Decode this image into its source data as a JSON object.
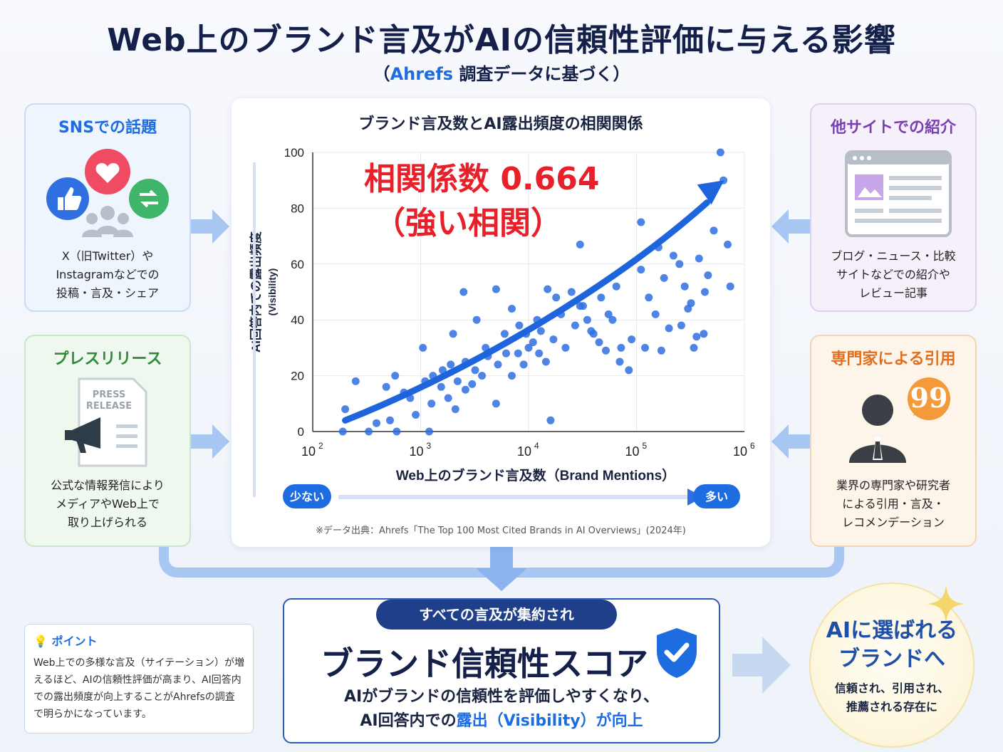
{
  "header": {
    "title": "Web上のブランド言及がAIの信頼性評価に与える影響",
    "subtitle_open": "（",
    "subtitle_brand": "Ahrefs",
    "subtitle_rest": " 調査データに基づく）"
  },
  "cards": {
    "sns": {
      "title": "SNSでの話題",
      "desc": "X（旧Twitter）や\nInstagramなどでの\n投稿・言及・シェア"
    },
    "press": {
      "title": "プレスリリース",
      "desc": "公式な情報発信により\nメディアやWeb上で\n取り上げられる",
      "doc_text": "PRESS\nRELEASE"
    },
    "other": {
      "title": "他サイトでの紹介",
      "desc": "ブログ・ニュース・比較\nサイトなどでの紹介や\nレビュー記事"
    },
    "expert": {
      "title": "専門家による引用",
      "desc": "業界の専門家や研究者\nによる引用・言及・\nレコメンデーション"
    }
  },
  "chart_panel": {
    "title": "ブランド言及数とAI露出頻度の相関関係",
    "source": "※データ出典：Ahrefs「The Top 100 Most Cited Brands in AI Overviews」(2024年)",
    "low_label": "少ない",
    "high_label": "多い"
  },
  "chart_data": {
    "type": "scatter",
    "xlabel": "Web上のブランド言及数（Brand Mentions）",
    "ylabel": "AI回答内での露出頻度",
    "ylabel_sub": "(Visibility)",
    "x_scale": "log",
    "xlim": [
      100,
      1000000
    ],
    "ylim": [
      0,
      100
    ],
    "x_ticks": [
      100,
      1000,
      10000,
      100000,
      1000000
    ],
    "x_tick_labels": [
      [
        "10",
        "2"
      ],
      [
        "10",
        "3"
      ],
      [
        "10",
        "4"
      ],
      [
        "10",
        "5"
      ],
      [
        "10",
        "6"
      ]
    ],
    "y_ticks": [
      0,
      20,
      40,
      60,
      80,
      100
    ],
    "grid": true,
    "annotation_line1": "相関係数 0.664",
    "annotation_line2": "（強い相関）",
    "trend_color": "#1e64dc",
    "point_color": "#2f6fe0",
    "series": [
      {
        "points": [
          [
            190,
            0
          ],
          [
            200,
            8
          ],
          [
            330,
            0
          ],
          [
            390,
            3
          ],
          [
            520,
            4
          ],
          [
            600,
            0
          ],
          [
            900,
            6
          ],
          [
            1200,
            0
          ],
          [
            1260,
            10
          ],
          [
            250,
            18
          ],
          [
            480,
            16
          ],
          [
            580,
            20
          ],
          [
            700,
            14
          ],
          [
            800,
            12
          ],
          [
            1100,
            18
          ],
          [
            1300,
            20
          ],
          [
            1550,
            16
          ],
          [
            1800,
            12
          ],
          [
            2100,
            8
          ],
          [
            2600,
            15
          ],
          [
            1050,
            30
          ],
          [
            1600,
            22
          ],
          [
            1900,
            24
          ],
          [
            2200,
            18
          ],
          [
            2600,
            25
          ],
          [
            3200,
            22
          ],
          [
            3700,
            20
          ],
          [
            4200,
            27
          ],
          [
            5200,
            24
          ],
          [
            6200,
            28
          ],
          [
            3300,
            40
          ],
          [
            2500,
            50
          ],
          [
            5000,
            51
          ],
          [
            7000,
            44
          ],
          [
            8200,
            38
          ],
          [
            9500,
            35
          ],
          [
            11000,
            32
          ],
          [
            12500,
            28
          ],
          [
            14500,
            25
          ],
          [
            16000,
            4
          ],
          [
            20000,
            42
          ],
          [
            25000,
            50
          ],
          [
            30000,
            45
          ],
          [
            35000,
            40
          ],
          [
            40000,
            35
          ],
          [
            47000,
            48
          ],
          [
            55000,
            42
          ],
          [
            65000,
            52
          ],
          [
            72000,
            30
          ],
          [
            85000,
            22
          ],
          [
            10000,
            30
          ],
          [
            13000,
            36
          ],
          [
            17000,
            33
          ],
          [
            22000,
            30
          ],
          [
            27000,
            38
          ],
          [
            32000,
            45
          ],
          [
            38000,
            36
          ],
          [
            45000,
            32
          ],
          [
            52000,
            29
          ],
          [
            60000,
            40
          ],
          [
            110000,
            58
          ],
          [
            130000,
            48
          ],
          [
            150000,
            42
          ],
          [
            180000,
            55
          ],
          [
            200000,
            37
          ],
          [
            250000,
            60
          ],
          [
            280000,
            52
          ],
          [
            320000,
            46
          ],
          [
            380000,
            62
          ],
          [
            430000,
            50
          ],
          [
            110000,
            75
          ],
          [
            160000,
            66
          ],
          [
            220000,
            63
          ],
          [
            300000,
            44
          ],
          [
            360000,
            34
          ],
          [
            460000,
            56
          ],
          [
            520000,
            72
          ],
          [
            640000,
            90
          ],
          [
            700000,
            67
          ],
          [
            740000,
            52
          ],
          [
            600000,
            100
          ],
          [
            30000,
            67
          ],
          [
            15000,
            51
          ],
          [
            70000,
            25
          ],
          [
            90000,
            33
          ],
          [
            120000,
            30
          ],
          [
            170000,
            29
          ],
          [
            260000,
            38
          ],
          [
            340000,
            30
          ],
          [
            420000,
            35
          ],
          [
            2000,
            35
          ],
          [
            4000,
            30
          ],
          [
            6000,
            35
          ],
          [
            8000,
            28
          ],
          [
            3000,
            17
          ],
          [
            5000,
            10
          ],
          [
            7000,
            20
          ],
          [
            9000,
            24
          ],
          [
            12000,
            40
          ],
          [
            18000,
            48
          ]
        ]
      }
    ]
  },
  "bottom": {
    "pill": "すべての言及が集約され",
    "main": "ブランド信頼性スコア",
    "desc_line1": "AIがブランドの信頼性を評価しやすくなり、",
    "desc_line2_pre": "AI回答内での",
    "desc_line2_hl": "露出（Visibility）が向上",
    "desc_line2_post": ""
  },
  "point": {
    "title": "ポイント",
    "text": "Web上での多様な言及（サイテーション）が増えるほど、AIの信頼性評価が高まり、AI回答内での露出頻度が向上することがAhrefsの調査で明らかになっています。"
  },
  "goal": {
    "main": "AIに選ばれる\nブランドへ",
    "sub": "信頼され、引用され、\n推薦される存在に"
  }
}
